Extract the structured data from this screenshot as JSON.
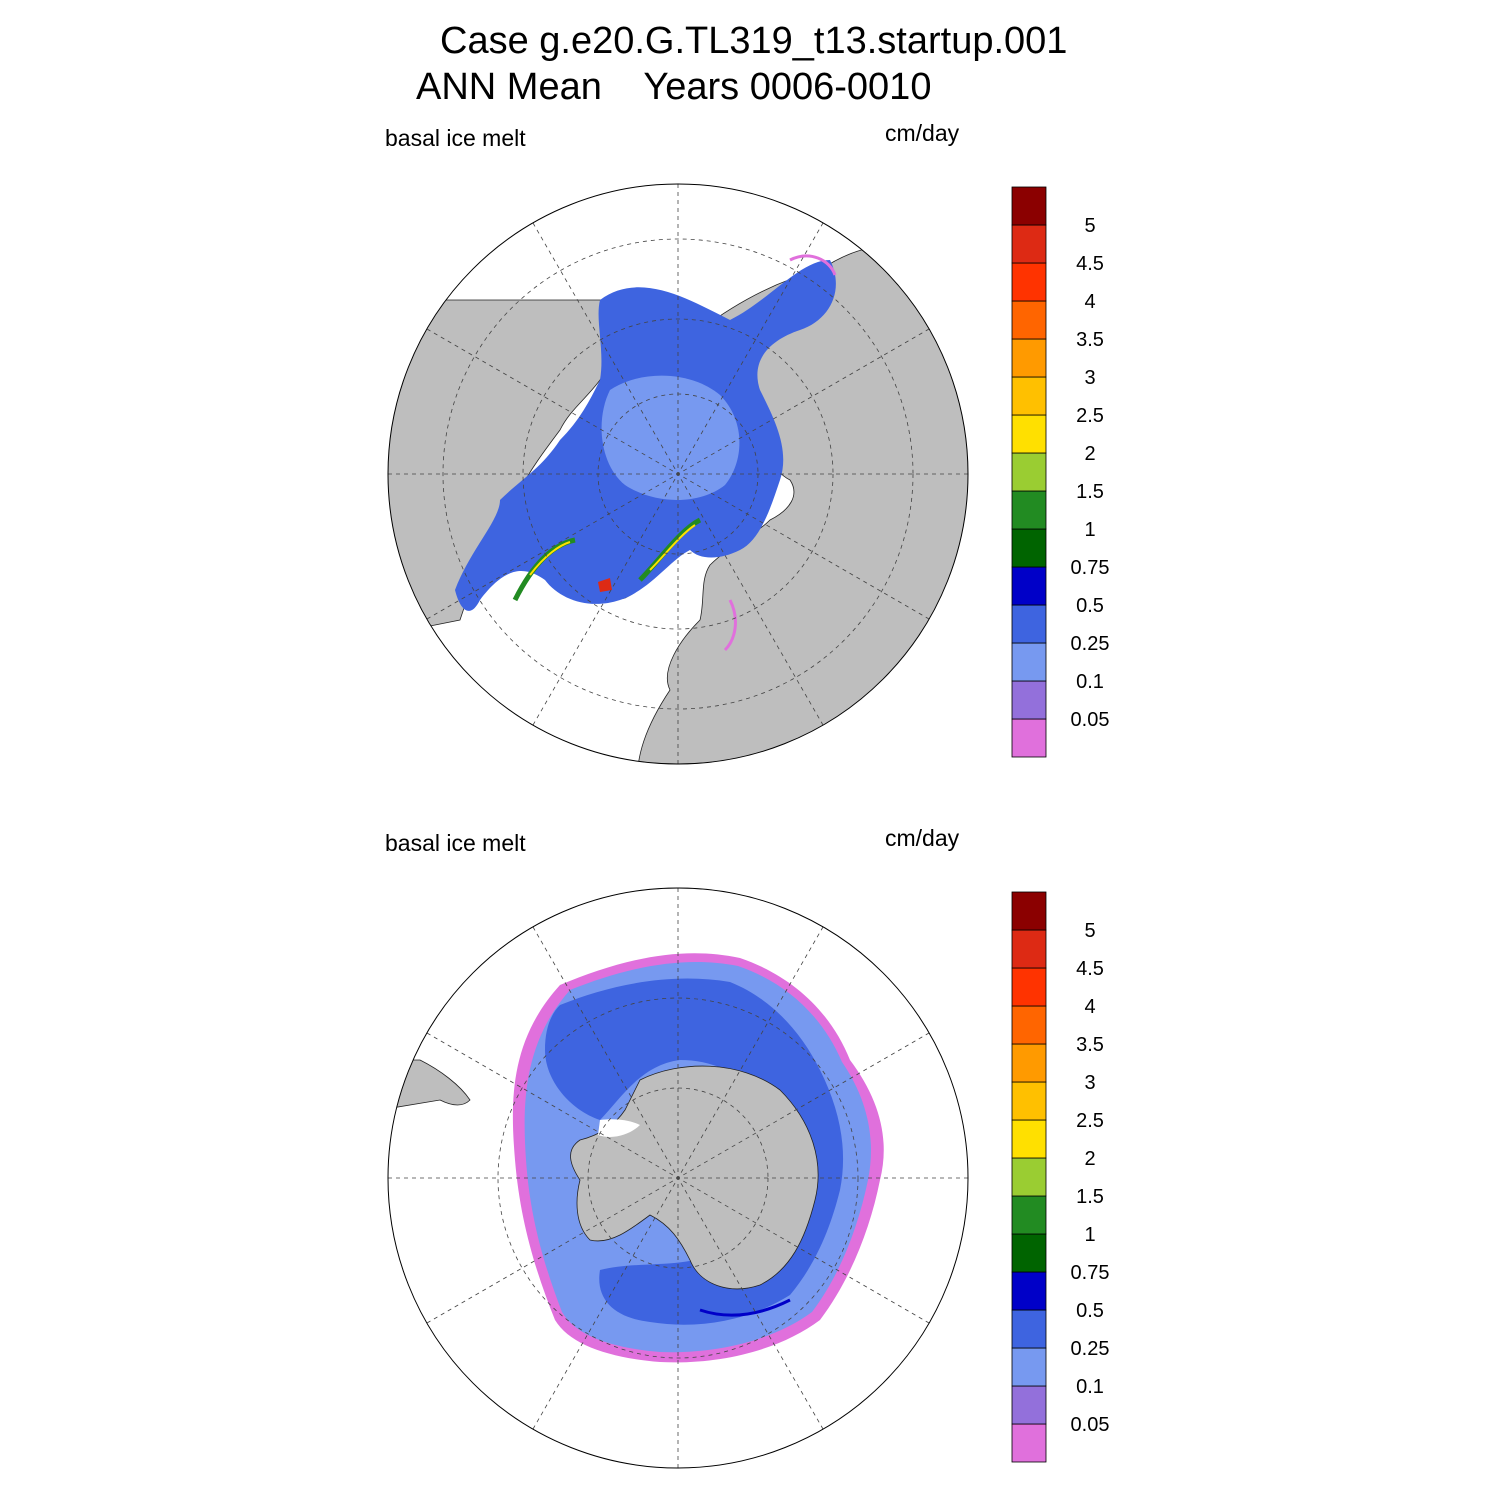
{
  "figure": {
    "title_line1": "Case g.e20.G.TL319_t13.startup.001",
    "title_line2": "ANN Mean    Years 0006-0010"
  },
  "chart_data": [
    {
      "type": "heatmap",
      "hemisphere": "north",
      "projection": "polar-stereographic",
      "left_label": "basal ice melt",
      "right_label": "cm/day",
      "colorbar": {
        "levels": [
          "0.05",
          "0.1",
          "0.25",
          "0.5",
          "0.75",
          "1",
          "1.5",
          "2",
          "2.5",
          "3",
          "3.5",
          "4",
          "4.5",
          "5"
        ],
        "colors": [
          "#e070dc",
          "#9370db",
          "#7799f0",
          "#3e64e0",
          "#0000c8",
          "#006400",
          "#228b22",
          "#9acd32",
          "#ffe000",
          "#ffc000",
          "#ff9a00",
          "#ff6500",
          "#ff3300",
          "#dd2a14",
          "#8b0000"
        ]
      },
      "grid": true,
      "land_color": "#bebebe"
    },
    {
      "type": "heatmap",
      "hemisphere": "south",
      "projection": "polar-stereographic",
      "left_label": "basal ice melt",
      "right_label": "cm/day",
      "colorbar": {
        "levels": [
          "0.05",
          "0.1",
          "0.25",
          "0.5",
          "0.75",
          "1",
          "1.5",
          "2",
          "2.5",
          "3",
          "3.5",
          "4",
          "4.5",
          "5"
        ],
        "colors": [
          "#e070dc",
          "#9370db",
          "#7799f0",
          "#3e64e0",
          "#0000c8",
          "#006400",
          "#228b22",
          "#9acd32",
          "#ffe000",
          "#ffc000",
          "#ff9a00",
          "#ff6500",
          "#ff3300",
          "#dd2a14",
          "#8b0000"
        ]
      },
      "grid": true,
      "land_color": "#bebebe"
    }
  ]
}
